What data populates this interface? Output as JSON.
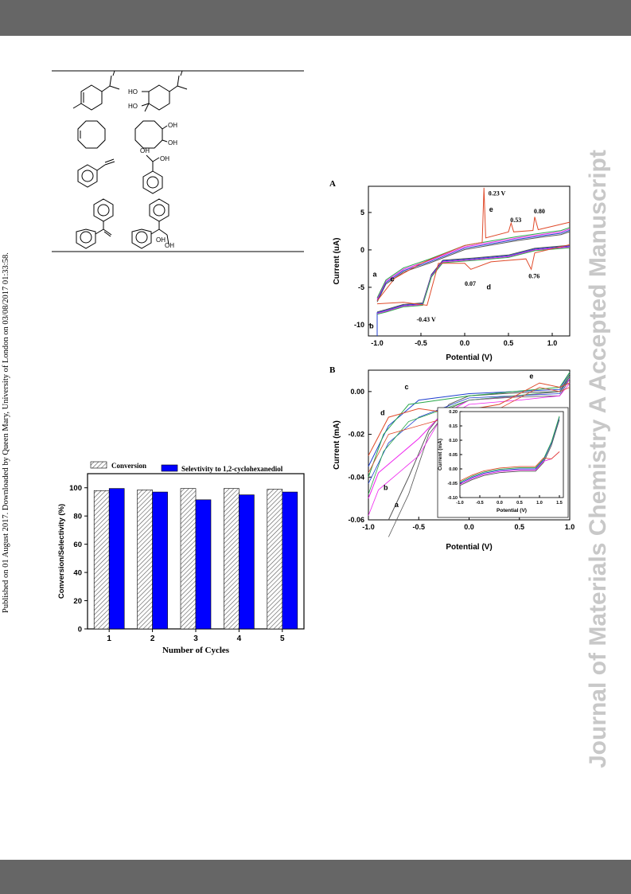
{
  "page": {
    "side_note": "Published on 01 August 2017. Downloaded by Queen Mary, University of London on 03/08/2017 01:33:58.",
    "watermark": "Journal of Materials Chemistry A Accepted Manuscript"
  },
  "structures": {
    "labels": [
      "HO",
      "HO",
      "OH",
      "OH",
      "OH",
      "OH",
      "OH",
      "OH"
    ]
  },
  "chart_data": [
    {
      "id": "bar",
      "type": "bar",
      "title": "",
      "xlabel": "Number of Cycles",
      "ylabel": "Conversion/Selectivity (%)",
      "ylim": [
        0,
        110
      ],
      "yticks": [
        0,
        20,
        40,
        60,
        80,
        100
      ],
      "categories": [
        "1",
        "2",
        "3",
        "4",
        "5"
      ],
      "series": [
        {
          "name": "Conversion",
          "values": [
            98,
            98.5,
            99.5,
            99.5,
            99
          ],
          "pattern": "hatch",
          "color": "#ffffff"
        },
        {
          "name": "Selevtivity to 1,2-cyclohexanediol",
          "values": [
            99.5,
            97,
            91.5,
            95,
            97
          ],
          "color": "#0000ff"
        }
      ],
      "legend": "top"
    },
    {
      "id": "cvA",
      "type": "line",
      "panel_label": "A",
      "xlabel": "Potential (V)",
      "ylabel": "Current (uA)",
      "xlim": [
        -1.1,
        1.2
      ],
      "ylim": [
        -11.5,
        8.5
      ],
      "xticks": [
        "-1.0",
        "-0.5",
        "0.0",
        "0.5",
        "1.0"
      ],
      "yticks": [
        "5",
        "0",
        "-5",
        "-10"
      ],
      "series": [
        {
          "name": "a",
          "color": "#555555"
        },
        {
          "name": "b",
          "color": "#1f3fd0"
        },
        {
          "name": "c",
          "color": "#ee22ee"
        },
        {
          "name": "d",
          "color": "#2aa84a"
        },
        {
          "name": "e",
          "color": "#e04a2a"
        }
      ],
      "annotations": [
        "0.23 V",
        "0.53",
        "0.80",
        "0.07",
        "0.76",
        "-0.43 V"
      ]
    },
    {
      "id": "cvB",
      "type": "line",
      "panel_label": "B",
      "xlabel": "Potential (V)",
      "ylabel": "Current (mA)",
      "xlim": [
        -1.0,
        1.0
      ],
      "ylim": [
        -0.06,
        0.01
      ],
      "xticks": [
        "-1.0",
        "-0.5",
        "0.0",
        "0.5",
        "1.0"
      ],
      "yticks": [
        "0.00",
        "-0.02",
        "-0.04",
        "-0.06"
      ],
      "series": [
        {
          "name": "a",
          "color": "#555555"
        },
        {
          "name": "b",
          "color": "#ee22ee"
        },
        {
          "name": "c",
          "color": "#1f3fd0"
        },
        {
          "name": "d",
          "color": "#2aa84a"
        },
        {
          "name": "e",
          "color": "#e04a2a"
        }
      ],
      "inset": {
        "xlabel": "Potential (V)",
        "ylabel": "Current (mA)",
        "xlim": [
          -1.0,
          1.6
        ],
        "ylim": [
          -0.1,
          0.2
        ],
        "xticks": [
          "-1.0",
          "-0.5",
          "0.0",
          "0.5",
          "1.0",
          "1.5"
        ],
        "yticks": [
          "0.20",
          "0.15",
          "0.10",
          "0.05",
          "0.00",
          "-0.05",
          "-0.10"
        ]
      }
    }
  ]
}
